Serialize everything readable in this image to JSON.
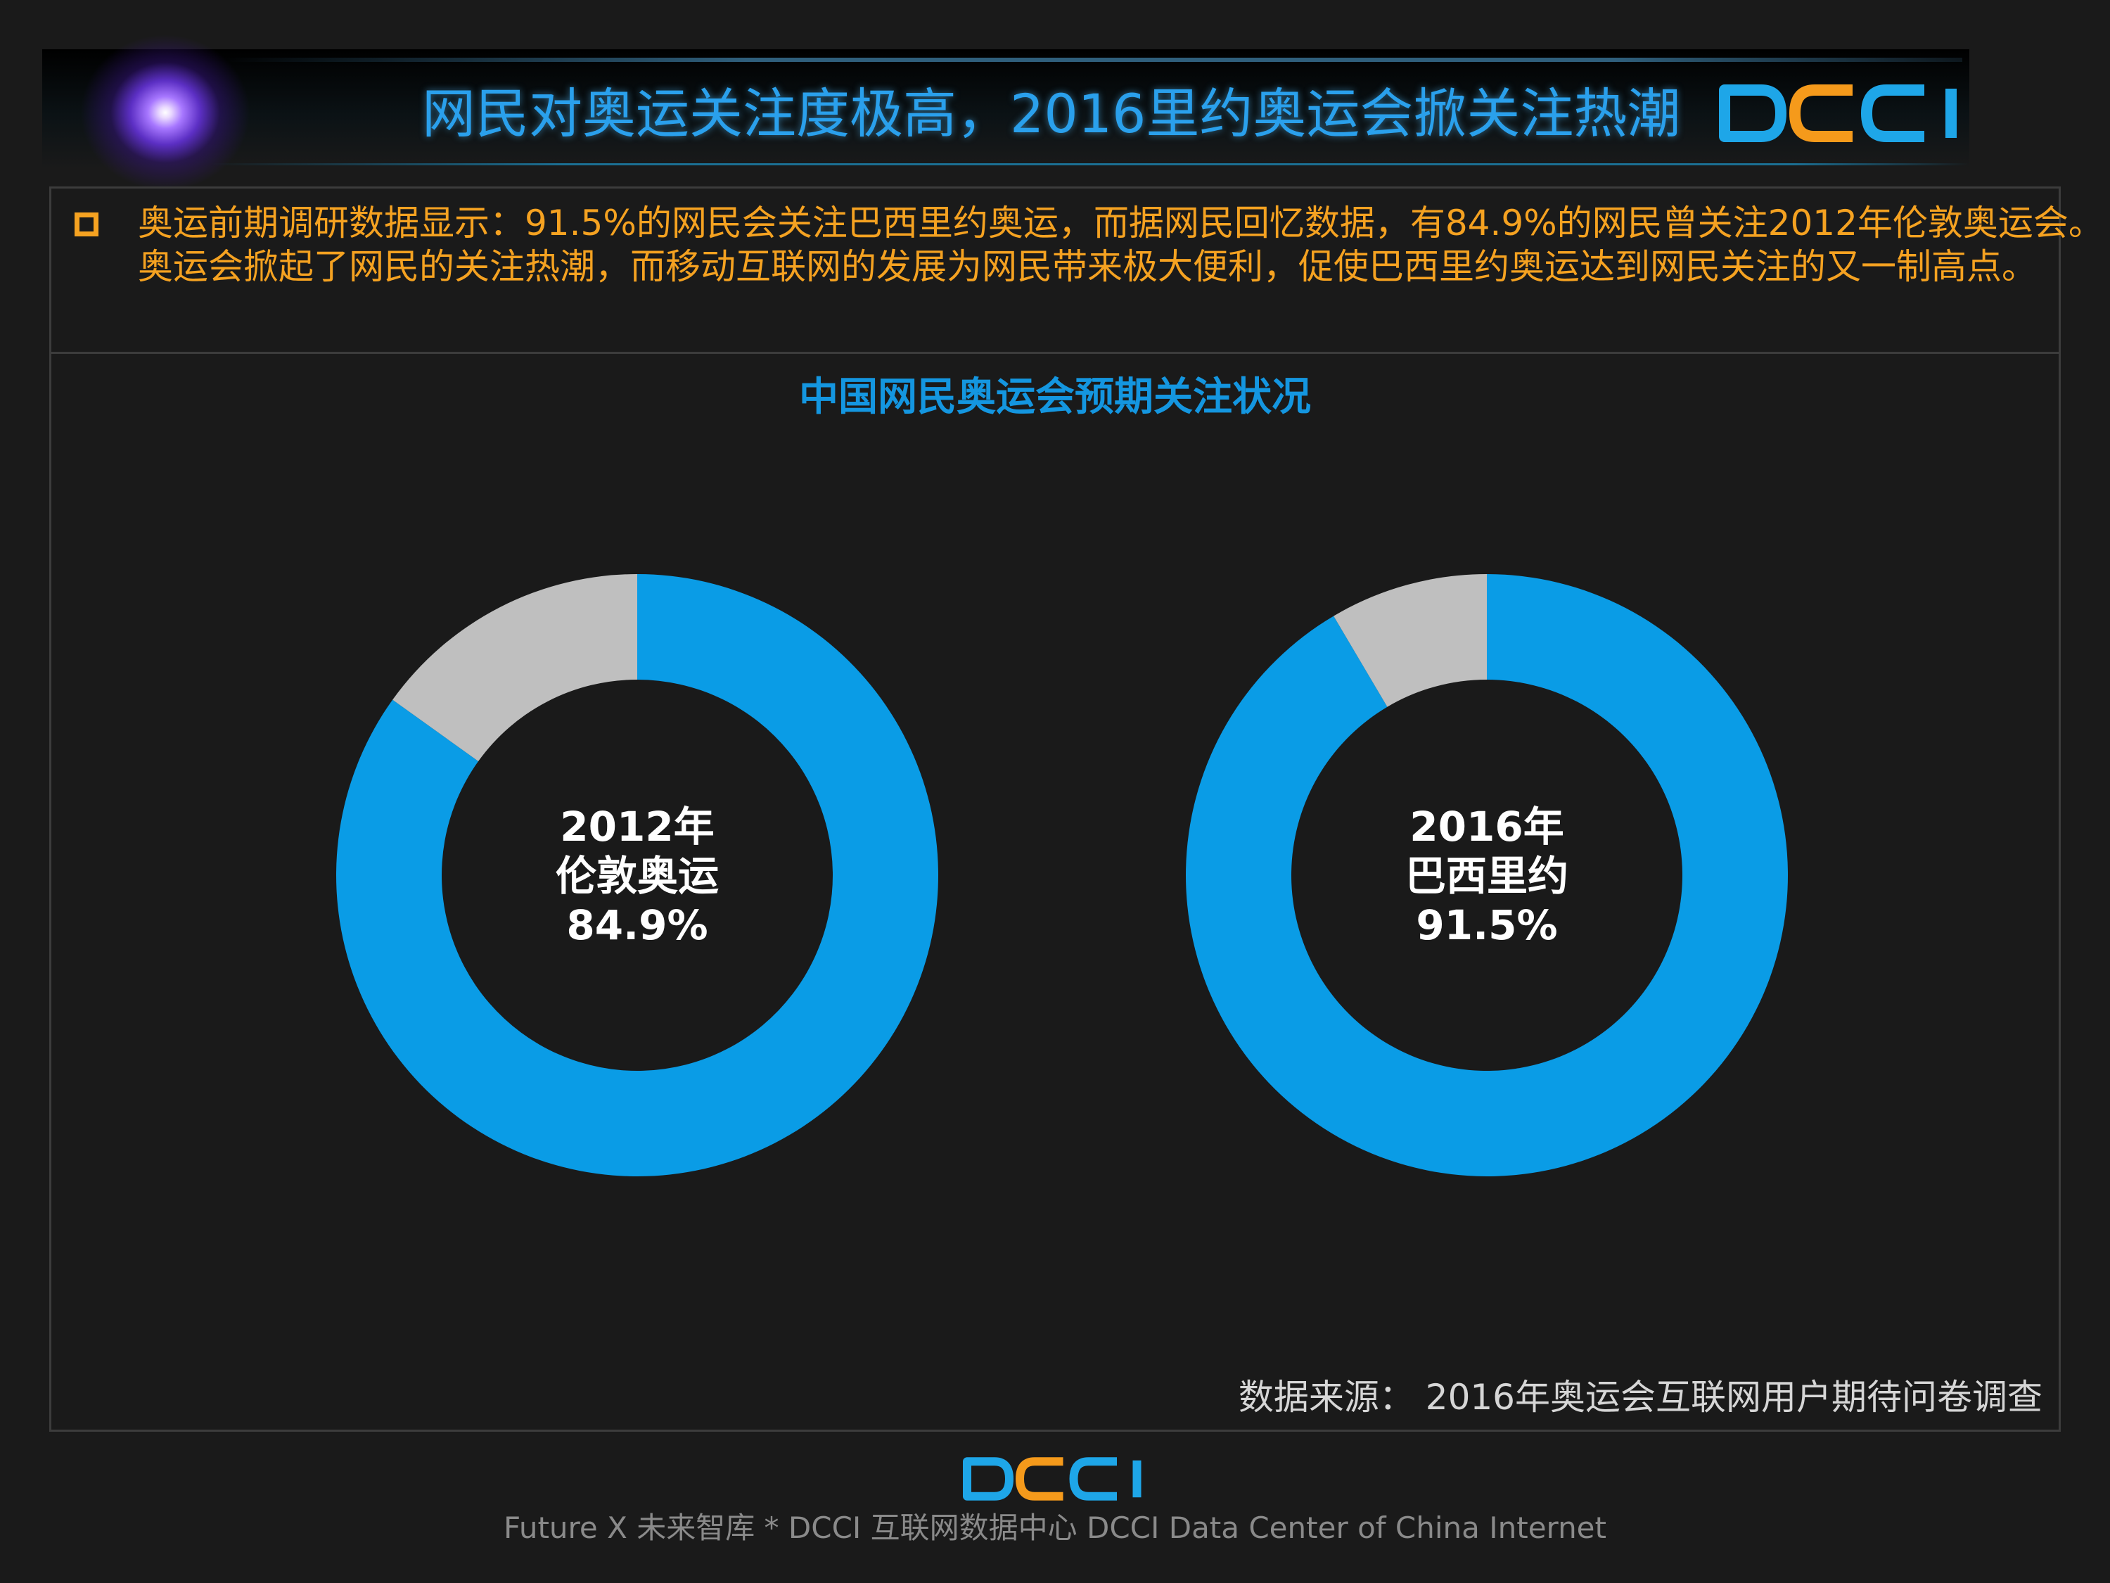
{
  "header": {
    "title": "网民对奥运关注度极高，2016里约奥运会掀关注热潮",
    "logo": {
      "text": "DCCI",
      "letters": [
        "D",
        "C",
        "C",
        "I"
      ],
      "colors": [
        "#1ea6e8",
        "#f59a1b",
        "#1ea6e8",
        "#1ea6e8"
      ]
    }
  },
  "summary": {
    "lines": [
      "奥运前期调研数据显示：91.5%的网民会关注巴西里约奥运，而据网民回忆数据，有84.9%的网民曾关注2012年伦敦奥运会。",
      "奥运会掀起了网民的关注热潮，而移动互联网的发展为网民带来极大便利，促使巴西里约奥运达到网民关注的又一制高点。"
    ]
  },
  "chart_data": [
    {
      "type": "pie",
      "title": "中国网民奥运会预期关注状况",
      "label_lines": [
        "2012年",
        "伦敦奥运",
        "84.9%"
      ],
      "slices": [
        {
          "value": 84.9,
          "color": "#0a9ce6"
        },
        {
          "value": 15.1,
          "color": "#bfbfbf"
        }
      ]
    },
    {
      "type": "pie",
      "title": "中国网民奥运会预期关注状况",
      "label_lines": [
        "2016年",
        "巴西里约",
        "91.5%"
      ],
      "slices": [
        {
          "value": 91.5,
          "color": "#0a9ce6"
        },
        {
          "value": 8.5,
          "color": "#bfbfbf"
        }
      ]
    }
  ],
  "chart_title": "中国网民奥运会预期关注状况",
  "source": "数据来源：  2016年奥运会互联网用户期待问卷调查",
  "footer": {
    "logo": {
      "text": "DCCI",
      "letters": [
        "D",
        "C",
        "C",
        "I"
      ],
      "colors": [
        "#1ea6e8",
        "#f59a1b",
        "#1ea6e8",
        "#1ea6e8"
      ]
    },
    "text": "Future X 未来智库 * DCCI 互联网数据中心 DCCI Data Center of China Internet"
  }
}
